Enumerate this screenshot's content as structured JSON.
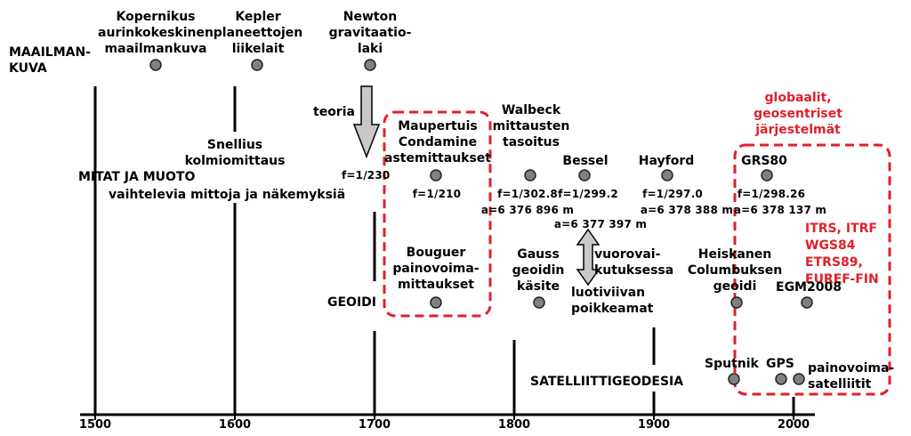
{
  "colors": {
    "accent": "#e0202a",
    "dot": "#808080",
    "arrow": "#c8c8c8"
  },
  "rows": {
    "world_view": "MAAILMAN-\nKUVA",
    "measurements": "MITAT JA MUOTO",
    "measurements_sub": "vaihtelevia mittoja ja näkemyksiä",
    "geoid": "GEOIDI",
    "satellite": "SATELLIITTIGEODESIA"
  },
  "axis": {
    "ticks": [
      "1500",
      "1600",
      "1700",
      "1800",
      "1900",
      "2000"
    ]
  },
  "events": {
    "copernicus": "Kopernikus\naurinkokeskinen\nmaailmankuva",
    "kepler": "Kepler\nplaneettojen\nliikelait",
    "newton": "Newton\ngravitaatio-\nlaki",
    "theory": "teoria",
    "snellius": "Snellius\nkolmiomittaus",
    "f230": "f=1/230",
    "maupertuis": "Maupertuis\nCondamine\nastemittaukset",
    "f210": "f=1/210",
    "walbeck": "Walbeck\nmittausten\ntasoitus",
    "walbeck_f": "f=1/302.8",
    "walbeck_a": "a=6 376 896 m",
    "bessel": "Bessel",
    "bessel_f": "f=1/299.2",
    "bessel_a": "a=6 377 397 m",
    "hayford": "Hayford",
    "hayford_f": "f=1/297.0",
    "hayford_a": "a=6 378 388 m",
    "grs80": "GRS80",
    "grs80_f": "f=1/298.26",
    "grs80_a": "a=6 378 137 m",
    "global": "globaalit,\ngeosentriset\njärjestelmät",
    "systems": "ITRS, ITRF\nWGS84\nETRS89,\nEUREF-FIN",
    "bouguer": "Bouguer\npainovoima-\nmittaukset",
    "gauss": "Gauss\ngeoidin\nkäsite",
    "tidal": "vuorovai-\nkutuksessa",
    "deflection": "luotiviivan\npoikkeamat",
    "heiskanen": "Heiskanen\nColumbuksen\ngeoidi",
    "egm2008": "EGM2008",
    "sputnik": "Sputnik",
    "gps": "GPS",
    "gravsat": "painovoima-\nsatelliitit"
  }
}
